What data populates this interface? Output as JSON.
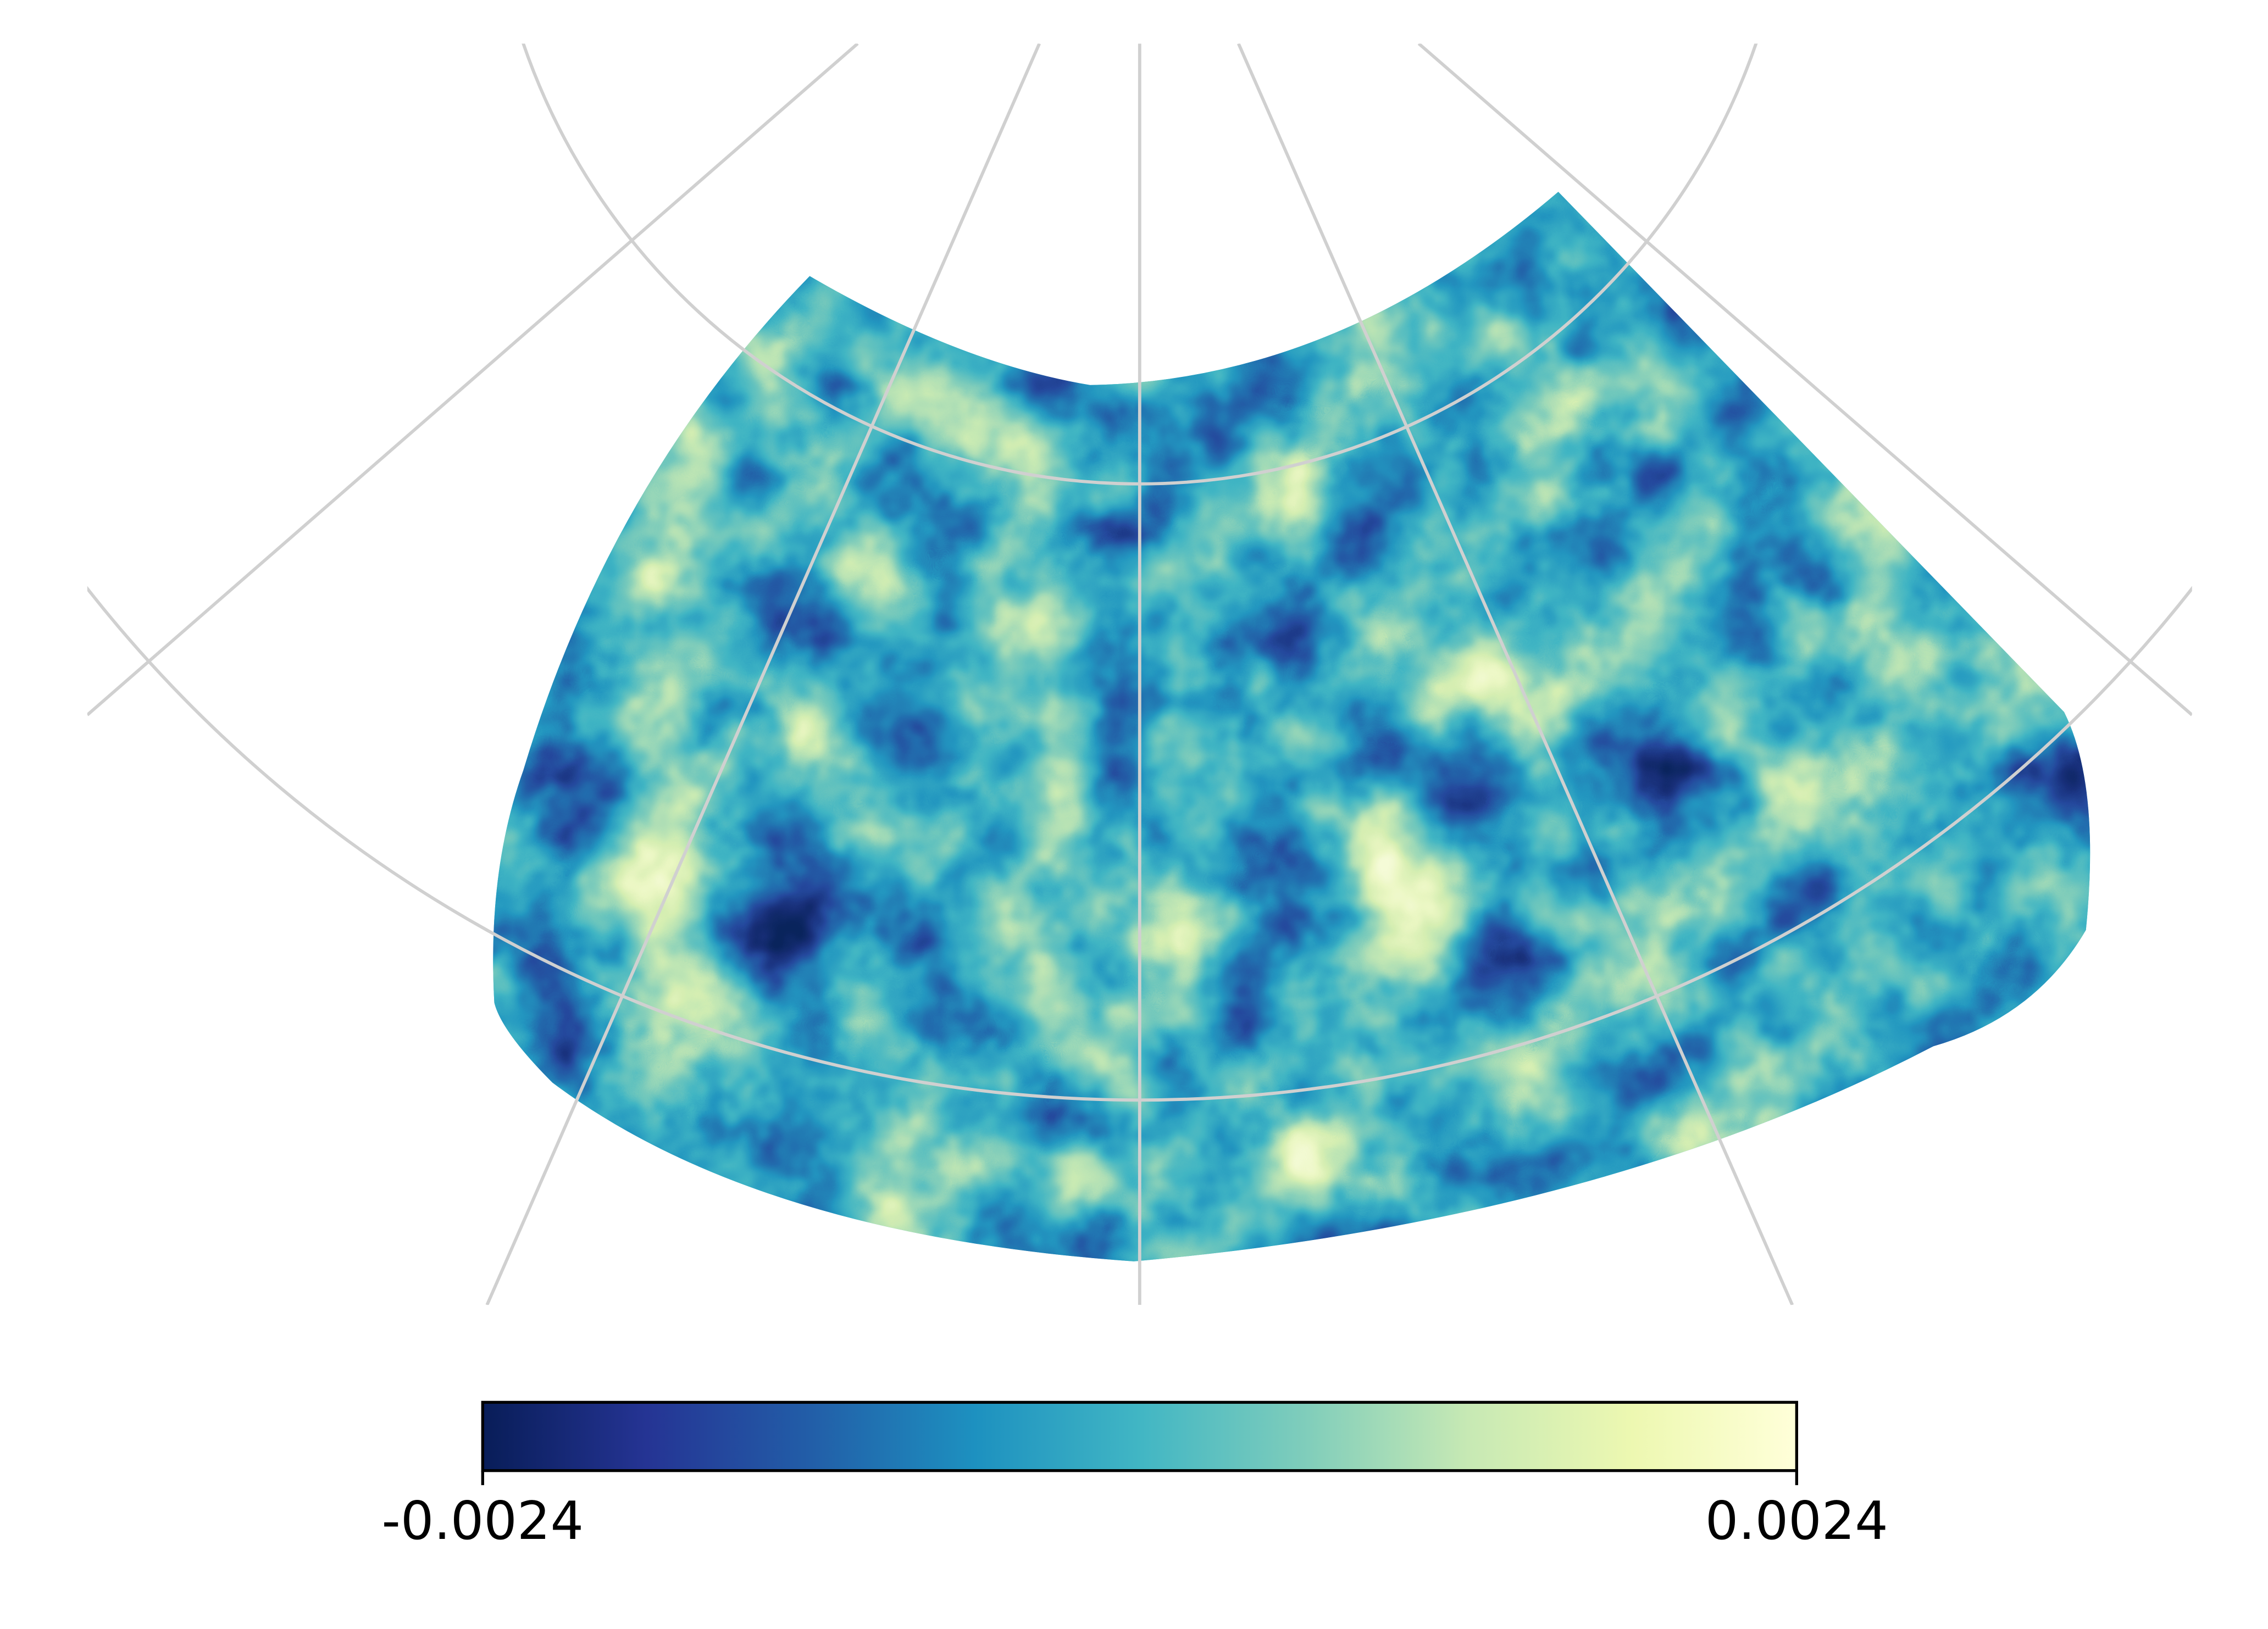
{
  "chart_data": {
    "type": "map",
    "colormap": [
      "#081d58",
      "#253494",
      "#225ea8",
      "#1d91c0",
      "#41b6c4",
      "#7fcdbb",
      "#c7e9b4",
      "#edf8b1",
      "#ffffd9"
    ],
    "colorbar": {
      "lim": [
        -0.0024,
        0.0024
      ],
      "ticks": [
        -0.0024,
        0.0024
      ]
    },
    "grid": true
  }
}
